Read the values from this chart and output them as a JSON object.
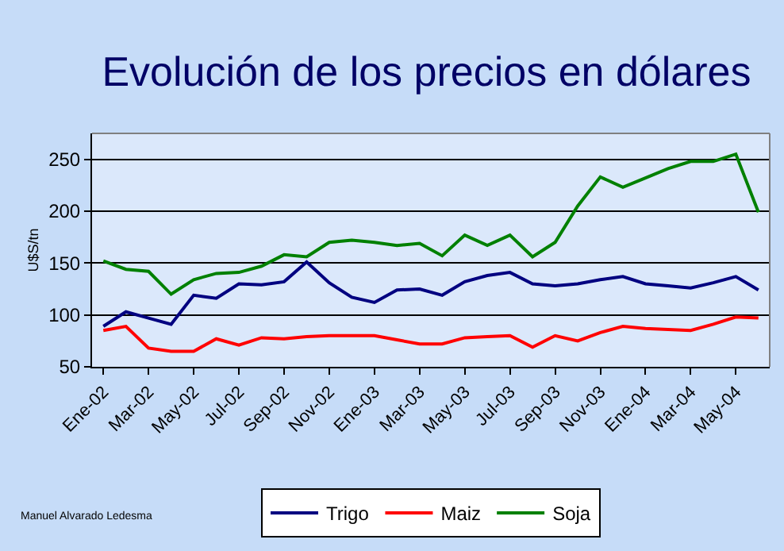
{
  "chart_data": {
    "type": "line",
    "title": "Evolución de los precios en dólares",
    "ylabel": "U$S/tn",
    "categories": [
      "Ene-02",
      null,
      "Mar-02",
      null,
      "May-02",
      null,
      "Jul-02",
      null,
      "Sep-02",
      null,
      "Nov-02",
      null,
      "Ene-03",
      null,
      "Mar-03",
      null,
      "May-03",
      null,
      "Jul-03",
      null,
      "Sep-03",
      null,
      "Nov-03",
      null,
      "Ene-04",
      null,
      "Mar-04",
      null,
      "May-04",
      null
    ],
    "series": [
      {
        "name": "Trigo",
        "color": "#000080",
        "values": [
          89,
          103,
          97,
          91,
          119,
          116,
          130,
          129,
          132,
          151,
          131,
          117,
          112,
          124,
          125,
          119,
          132,
          138,
          141,
          130,
          128,
          130,
          134,
          137,
          130,
          128,
          126,
          131,
          137,
          124
        ]
      },
      {
        "name": "Maiz",
        "color": "#ff0000",
        "values": [
          85,
          89,
          68,
          65,
          65,
          77,
          71,
          78,
          77,
          79,
          80,
          80,
          80,
          76,
          72,
          72,
          78,
          79,
          80,
          69,
          80,
          75,
          83,
          89,
          87,
          86,
          85,
          91,
          98,
          97
        ]
      },
      {
        "name": "Soja",
        "color": "#008000",
        "values": [
          152,
          144,
          142,
          120,
          134,
          140,
          141,
          147,
          158,
          156,
          170,
          172,
          170,
          167,
          169,
          157,
          177,
          167,
          177,
          156,
          170,
          205,
          233,
          223,
          232,
          241,
          248,
          248,
          255,
          199
        ]
      }
    ],
    "ylim": [
      50,
      275
    ],
    "yticks": [
      50,
      100,
      150,
      200,
      250
    ],
    "grid": "y",
    "legend": "bottom",
    "marker": "none",
    "line_style": "solid",
    "annotations": [
      "Manuel Alvarado Ledesma"
    ]
  }
}
